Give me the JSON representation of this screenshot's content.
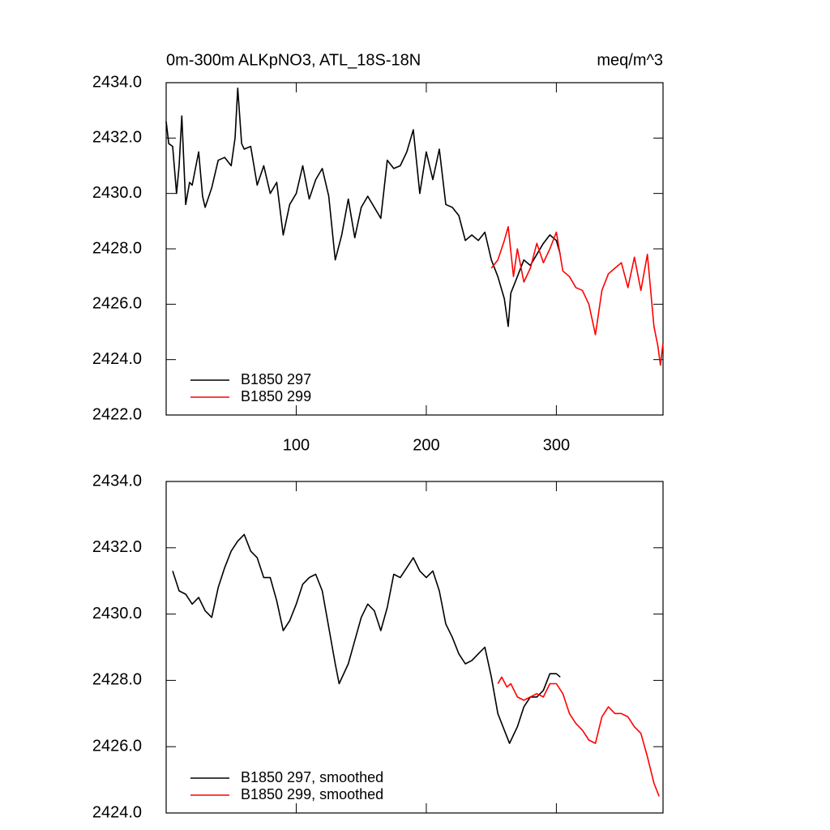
{
  "chart_data": [
    {
      "type": "line",
      "title": "0m-300m ALKpNO3, ATL_18S-18N",
      "units": "meq/m^3",
      "xlim": [
        0,
        382
      ],
      "xticks": [
        100,
        200,
        300
      ],
      "xtick_labels": true,
      "ylim": [
        2422,
        2434
      ],
      "yticks": [
        {
          "value": 2422,
          "label": "2422.0"
        },
        {
          "value": 2424,
          "label": "2424.0"
        },
        {
          "value": 2426,
          "label": "2426.0"
        },
        {
          "value": 2428,
          "label": "2428.0"
        },
        {
          "value": 2430,
          "label": "2430.0"
        },
        {
          "value": 2432,
          "label": "2432.0"
        },
        {
          "value": 2434,
          "label": "2434.0"
        }
      ],
      "legend": "lower left",
      "series": [
        {
          "name": "B1850 297",
          "color": "#000000",
          "x": [
            0,
            2,
            5,
            8,
            10,
            12,
            15,
            18,
            20,
            25,
            28,
            30,
            35,
            40,
            45,
            50,
            53,
            55,
            58,
            60,
            65,
            70,
            75,
            80,
            85,
            90,
            95,
            100,
            105,
            110,
            115,
            120,
            125,
            130,
            135,
            140,
            145,
            150,
            155,
            160,
            165,
            170,
            175,
            180,
            185,
            190,
            195,
            200,
            205,
            210,
            215,
            220,
            225,
            230,
            235,
            240,
            245,
            250,
            255,
            260,
            263,
            265,
            270,
            275,
            280,
            285,
            290,
            295,
            300,
            303
          ],
          "values": [
            2432.6,
            2431.8,
            2431.7,
            2430.0,
            2431.0,
            2432.8,
            2429.6,
            2430.4,
            2430.3,
            2431.5,
            2429.9,
            2429.5,
            2430.2,
            2431.2,
            2431.3,
            2431.0,
            2432.0,
            2433.8,
            2431.8,
            2431.6,
            2431.7,
            2430.3,
            2431.0,
            2430.0,
            2430.4,
            2428.5,
            2429.6,
            2430.0,
            2431.0,
            2429.8,
            2430.5,
            2430.9,
            2429.9,
            2427.6,
            2428.5,
            2429.8,
            2428.4,
            2429.5,
            2429.9,
            2429.5,
            2429.1,
            2431.2,
            2430.9,
            2431.0,
            2431.5,
            2432.3,
            2430.0,
            2431.5,
            2430.5,
            2431.6,
            2429.6,
            2429.5,
            2429.2,
            2428.3,
            2428.5,
            2428.3,
            2428.6,
            2427.6,
            2427.0,
            2426.2,
            2425.2,
            2426.4,
            2427.0,
            2427.6,
            2427.4,
            2427.8,
            2428.2,
            2428.5,
            2428.3,
            2427.8
          ]
        },
        {
          "name": "B1850 299",
          "color": "#ff0000",
          "x": [
            250,
            255,
            260,
            263,
            267,
            270,
            275,
            280,
            285,
            290,
            295,
            300,
            305,
            310,
            315,
            320,
            325,
            330,
            335,
            340,
            345,
            350,
            355,
            360,
            365,
            370,
            375,
            378,
            380,
            382
          ],
          "values": [
            2427.3,
            2427.6,
            2428.3,
            2428.8,
            2427.0,
            2428.0,
            2426.8,
            2427.3,
            2428.2,
            2427.5,
            2428.0,
            2428.6,
            2427.2,
            2427.0,
            2426.6,
            2426.5,
            2426.0,
            2424.9,
            2426.5,
            2427.1,
            2427.3,
            2427.5,
            2426.6,
            2427.7,
            2426.5,
            2427.8,
            2425.2,
            2424.5,
            2423.8,
            2424.6
          ]
        }
      ]
    },
    {
      "type": "line",
      "xlim": [
        0,
        382
      ],
      "xticks": [
        100,
        200,
        300
      ],
      "xtick_labels": false,
      "ylim": [
        2424,
        2434
      ],
      "yticks": [
        {
          "value": 2424,
          "label": "2424.0"
        },
        {
          "value": 2426,
          "label": "2426.0"
        },
        {
          "value": 2428,
          "label": "2428.0"
        },
        {
          "value": 2430,
          "label": "2430.0"
        },
        {
          "value": 2432,
          "label": "2432.0"
        },
        {
          "value": 2434,
          "label": "2434.0"
        }
      ],
      "legend": "lower left",
      "series": [
        {
          "name": "B1850 297, smoothed",
          "color": "#000000",
          "x": [
            5,
            10,
            15,
            20,
            25,
            30,
            35,
            40,
            45,
            50,
            55,
            60,
            65,
            70,
            75,
            80,
            85,
            90,
            95,
            100,
            105,
            110,
            115,
            120,
            125,
            130,
            133,
            140,
            145,
            150,
            155,
            160,
            165,
            170,
            175,
            180,
            185,
            190,
            195,
            200,
            205,
            210,
            215,
            220,
            225,
            230,
            235,
            240,
            245,
            250,
            255,
            260,
            264,
            270,
            275,
            280,
            285,
            290,
            295,
            300,
            303
          ],
          "values": [
            2431.3,
            2430.7,
            2430.6,
            2430.3,
            2430.5,
            2430.1,
            2429.9,
            2430.8,
            2431.4,
            2431.9,
            2432.2,
            2432.4,
            2431.9,
            2431.7,
            2431.1,
            2431.1,
            2430.4,
            2429.5,
            2429.8,
            2430.3,
            2430.9,
            2431.1,
            2431.2,
            2430.7,
            2429.6,
            2428.5,
            2427.9,
            2428.5,
            2429.2,
            2429.9,
            2430.3,
            2430.1,
            2429.5,
            2430.2,
            2431.2,
            2431.1,
            2431.4,
            2431.7,
            2431.3,
            2431.1,
            2431.3,
            2430.7,
            2429.7,
            2429.3,
            2428.8,
            2428.5,
            2428.6,
            2428.8,
            2429.0,
            2428.1,
            2427.0,
            2426.5,
            2426.1,
            2426.6,
            2427.2,
            2427.5,
            2427.5,
            2427.7,
            2428.2,
            2428.2,
            2428.1
          ]
        },
        {
          "name": "B1850 299, smoothed",
          "color": "#ff0000",
          "x": [
            255,
            258,
            262,
            265,
            270,
            275,
            280,
            285,
            290,
            295,
            300,
            305,
            310,
            315,
            320,
            325,
            330,
            335,
            340,
            345,
            350,
            355,
            360,
            365,
            370,
            375,
            379
          ],
          "values": [
            2427.9,
            2428.1,
            2427.8,
            2427.9,
            2427.5,
            2427.4,
            2427.5,
            2427.6,
            2427.5,
            2427.9,
            2427.9,
            2427.6,
            2427.0,
            2426.7,
            2426.5,
            2426.2,
            2426.1,
            2426.9,
            2427.2,
            2427.0,
            2427.0,
            2426.9,
            2426.6,
            2426.4,
            2425.7,
            2424.9,
            2424.5
          ]
        }
      ]
    }
  ]
}
